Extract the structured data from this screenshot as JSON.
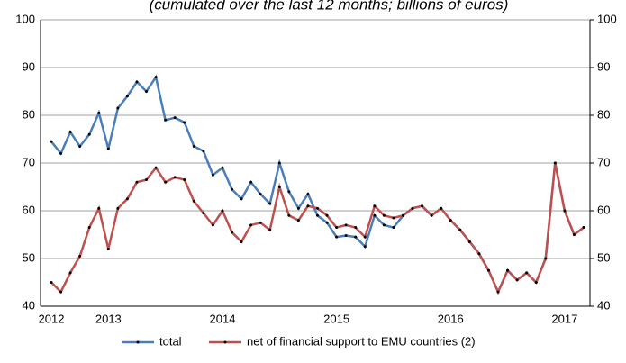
{
  "chart_data": {
    "type": "line",
    "title": "(cumulated over the last 12 months; billions of euros)",
    "categories": [
      "2012",
      null,
      null,
      null,
      null,
      null,
      "2013",
      null,
      null,
      null,
      null,
      null,
      null,
      null,
      null,
      null,
      null,
      null,
      "2014",
      null,
      null,
      null,
      null,
      null,
      null,
      null,
      null,
      null,
      null,
      null,
      "2015",
      null,
      null,
      null,
      null,
      null,
      null,
      null,
      null,
      null,
      null,
      null,
      "2016",
      null,
      null,
      null,
      null,
      null,
      null,
      null,
      null,
      null,
      null,
      null,
      "2017",
      null,
      null
    ],
    "series": [
      {
        "name": "total",
        "color": "#4a7ebb",
        "values": [
          74.5,
          72,
          76.5,
          73.5,
          76,
          80.5,
          73,
          81.5,
          84,
          87,
          85,
          88,
          79,
          79.5,
          78.5,
          73.5,
          72.5,
          67.5,
          69,
          64.5,
          62.5,
          66,
          63.5,
          61.5,
          70,
          64,
          60.5,
          63.5,
          59,
          57.5,
          54.5,
          54.8,
          54.5,
          52.5,
          59,
          57,
          56.5,
          59,
          60.5,
          61,
          59,
          60.5,
          58,
          56,
          53.5,
          51,
          47.5,
          43,
          47.5,
          45.5,
          47,
          45,
          50,
          70,
          60,
          55,
          56.5
        ]
      },
      {
        "name": "net of financial support to EMU countries (2)",
        "color": "#c0504d",
        "values": [
          45,
          43,
          47,
          50.5,
          56.5,
          60.5,
          52,
          60.5,
          62.5,
          66,
          66.5,
          69,
          66,
          67,
          66.5,
          62,
          59.5,
          57,
          60,
          55.5,
          53.5,
          57,
          57.5,
          56,
          65,
          59,
          58,
          61,
          60.5,
          59,
          56.5,
          57,
          56.5,
          54.5,
          61,
          59,
          58.5,
          59,
          60.5,
          61,
          59,
          60.5,
          58,
          56,
          53.5,
          51,
          47.5,
          43,
          47.5,
          45.5,
          47,
          45,
          50,
          70,
          60,
          55,
          56.5
        ]
      }
    ],
    "ylim": [
      40,
      100
    ],
    "yticks": [
      40,
      50,
      60,
      70,
      80,
      90,
      100
    ],
    "y2lim": [
      40,
      100
    ],
    "y2ticks": [
      40,
      50,
      60,
      70,
      80,
      90,
      100
    ],
    "grid": true,
    "legend": "bottom"
  }
}
